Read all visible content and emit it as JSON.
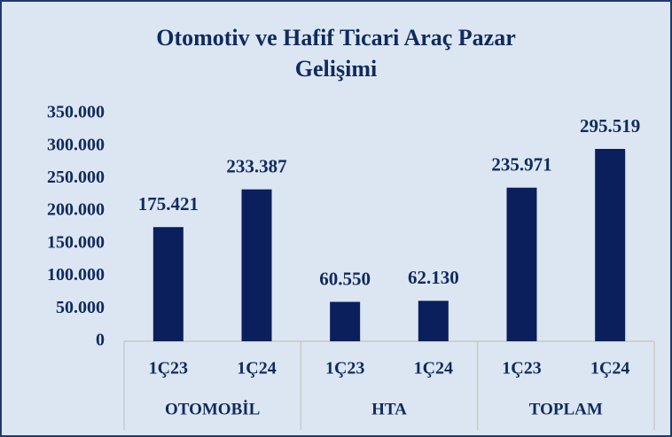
{
  "chart_data": {
    "type": "bar",
    "title": [
      "Otomotiv ve Hafif Ticari Araç Pazar",
      "Gelişimi"
    ],
    "groups": [
      {
        "name": "OTOMOBİL",
        "categories": [
          "1Ç23",
          "1Ç24"
        ],
        "values": [
          175421,
          233387
        ],
        "value_labels": [
          "175.421",
          "233.387"
        ]
      },
      {
        "name": "HTA",
        "categories": [
          "1Ç23",
          "1Ç24"
        ],
        "values": [
          60550,
          62130
        ],
        "value_labels": [
          "60.550",
          "62.130"
        ]
      },
      {
        "name": "TOPLAM",
        "categories": [
          "1Ç23",
          "1Ç24"
        ],
        "values": [
          235971,
          295519
        ],
        "value_labels": [
          "235.971",
          "295.519"
        ]
      }
    ],
    "color": "#0b1f5c",
    "ylim": [
      0,
      350000
    ],
    "yticks": [
      0,
      {
        "value": 50000,
        "label": "50.000"
      },
      {
        "value": 100000,
        "label": "100.000"
      },
      {
        "value": 150000,
        "label": "150.000"
      },
      {
        "value": 200000,
        "label": "200.000"
      },
      {
        "value": 250000,
        "label": "250.000"
      },
      {
        "value": 300000,
        "label": "300.000"
      },
      {
        "value": 350000,
        "label": "350.000"
      }
    ]
  }
}
